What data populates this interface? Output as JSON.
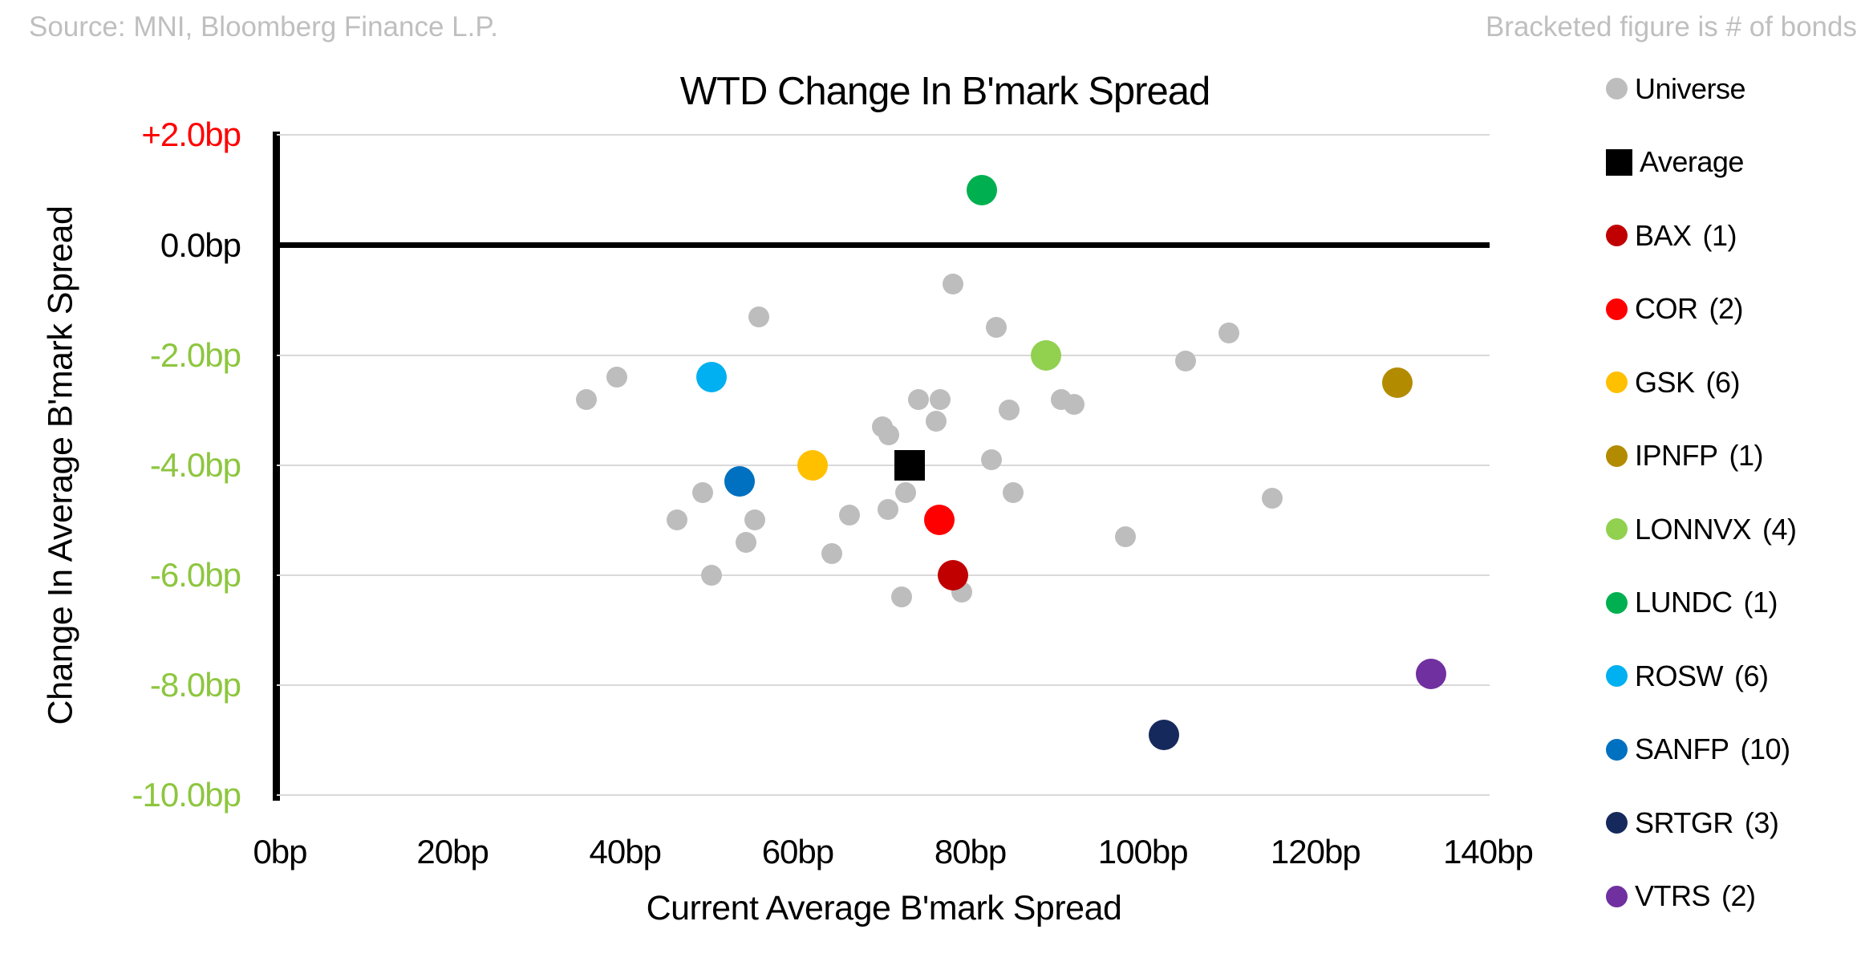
{
  "notes": {
    "source": "Source: MNI, Bloomberg Finance L.P.",
    "bracket": "Bracketed figure is # of bonds"
  },
  "chart_data": {
    "type": "scatter",
    "title": "WTD Change In B'mark Spread",
    "xlabel": "Current Average B'mark Spread",
    "ylabel": "Change In Average B'mark Spread",
    "xlim": [
      0,
      140
    ],
    "ylim": [
      -10,
      2
    ],
    "grid": true,
    "legend_position": "right",
    "x_ticks": [
      {
        "v": 0,
        "label": "0bp"
      },
      {
        "v": 20,
        "label": "20bp"
      },
      {
        "v": 40,
        "label": "40bp"
      },
      {
        "v": 60,
        "label": "60bp"
      },
      {
        "v": 80,
        "label": "80bp"
      },
      {
        "v": 100,
        "label": "100bp"
      },
      {
        "v": 120,
        "label": "120bp"
      },
      {
        "v": 140,
        "label": "140bp"
      }
    ],
    "y_ticks": [
      {
        "v": 2,
        "label": "+2.0bp",
        "color": "#FF0000"
      },
      {
        "v": 0,
        "label": "0.0bp",
        "color": "#000000"
      },
      {
        "v": -2,
        "label": "-2.0bp",
        "color": "#8DC63F"
      },
      {
        "v": -4,
        "label": "-4.0bp",
        "color": "#8DC63F"
      },
      {
        "v": -6,
        "label": "-6.0bp",
        "color": "#8DC63F"
      },
      {
        "v": -8,
        "label": "-8.0bp",
        "color": "#8DC63F"
      },
      {
        "v": -10,
        "label": "-10.0bp",
        "color": "#8DC63F"
      }
    ],
    "series": [
      {
        "name": "Universe",
        "count": null,
        "color": "#BDBDBD",
        "marker": "circle",
        "points": [
          [
            55.5,
            -1.3
          ],
          [
            39,
            -2.4
          ],
          [
            35.5,
            -2.8
          ],
          [
            49,
            -4.5
          ],
          [
            46,
            -5.0
          ],
          [
            55,
            -5.0
          ],
          [
            54,
            -5.4
          ],
          [
            50,
            -6.0
          ],
          [
            64,
            -5.6
          ],
          [
            78,
            -0.7
          ],
          [
            83,
            -1.5
          ],
          [
            74,
            -2.8
          ],
          [
            76.5,
            -2.8
          ],
          [
            84.5,
            -3.0
          ],
          [
            90.5,
            -2.8
          ],
          [
            92,
            -2.9
          ],
          [
            76,
            -3.2
          ],
          [
            69.8,
            -3.3
          ],
          [
            70.6,
            -3.45
          ],
          [
            82.5,
            -3.9
          ],
          [
            72.5,
            -4.5
          ],
          [
            85,
            -4.5
          ],
          [
            66,
            -4.9
          ],
          [
            70.5,
            -4.8
          ],
          [
            79,
            -6.3
          ],
          [
            72,
            -6.4
          ],
          [
            110,
            -1.6
          ],
          [
            105,
            -2.1
          ],
          [
            115,
            -4.6
          ],
          [
            98,
            -5.3
          ]
        ]
      },
      {
        "name": "Average",
        "count": null,
        "color": "#000000",
        "marker": "square",
        "points": [
          [
            73,
            -4
          ]
        ]
      },
      {
        "name": "BAX",
        "count": 1,
        "color": "#C00000",
        "marker": "circle",
        "points": [
          [
            78,
            -6
          ]
        ]
      },
      {
        "name": "COR",
        "count": 2,
        "color": "#FF0000",
        "marker": "circle",
        "points": [
          [
            76.4,
            -5
          ]
        ]
      },
      {
        "name": "GSK",
        "count": 6,
        "color": "#FFC000",
        "marker": "circle",
        "points": [
          [
            61.7,
            -4
          ]
        ]
      },
      {
        "name": "IPNFP",
        "count": 1,
        "color": "#B38B00",
        "marker": "circle",
        "points": [
          [
            129.5,
            -2.5
          ]
        ]
      },
      {
        "name": "LONNVX",
        "count": 4,
        "color": "#92D050",
        "marker": "circle",
        "points": [
          [
            88.8,
            -2
          ]
        ]
      },
      {
        "name": "LUNDC",
        "count": 1,
        "color": "#00B050",
        "marker": "circle",
        "points": [
          [
            81.3,
            1
          ]
        ]
      },
      {
        "name": "ROSW",
        "count": 6,
        "color": "#00B0F0",
        "marker": "circle",
        "points": [
          [
            50,
            -2.4
          ]
        ]
      },
      {
        "name": "SANFP",
        "count": 10,
        "color": "#0070C0",
        "marker": "circle",
        "points": [
          [
            53.3,
            -4.3
          ]
        ]
      },
      {
        "name": "SRTGR",
        "count": 3,
        "color": "#16295C",
        "marker": "circle",
        "points": [
          [
            102.4,
            -8.9
          ]
        ]
      },
      {
        "name": "VTRS",
        "count": 2,
        "color": "#7030A0",
        "marker": "circle",
        "points": [
          [
            133.4,
            -7.8
          ]
        ]
      }
    ]
  }
}
